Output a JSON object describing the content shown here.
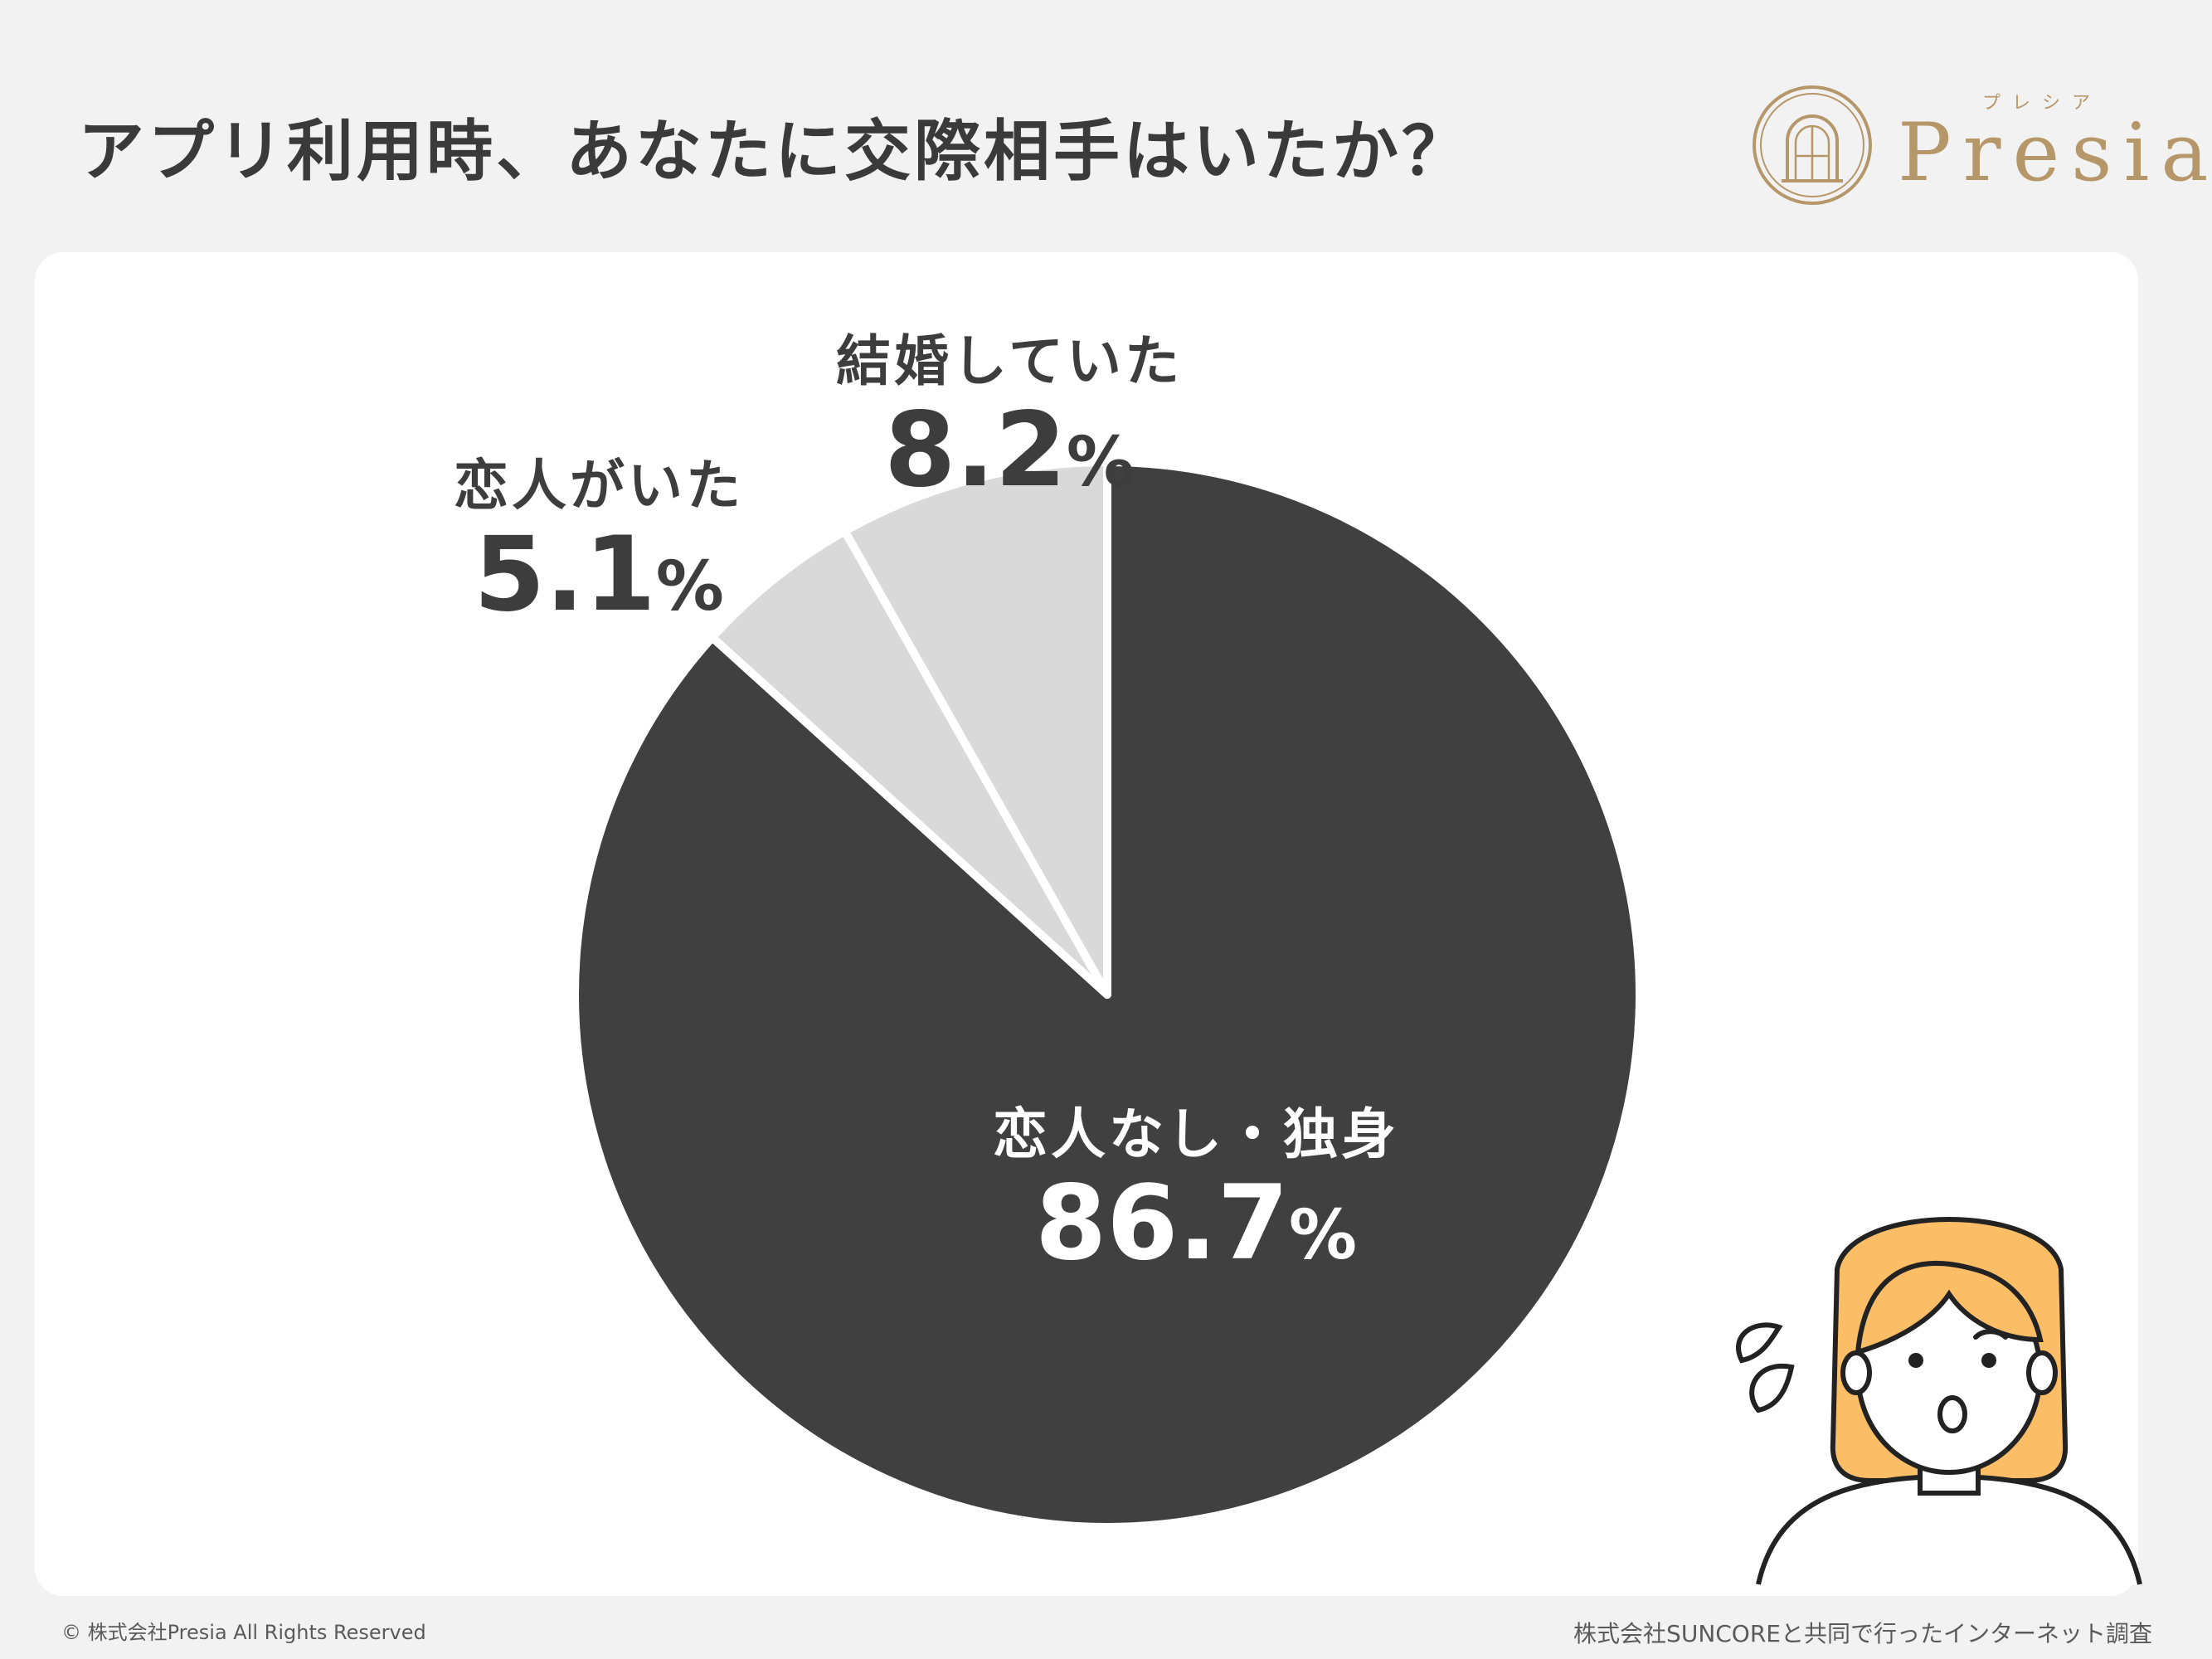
{
  "title": "アプリ利用時、あなたに交際相手はいたか？",
  "logo": {
    "word": "Presia",
    "kana": "プレシア"
  },
  "chart_data": {
    "type": "pie",
    "start": "12 o'clock",
    "direction": "clockwise",
    "slices": [
      {
        "label": "恋人なし・独身",
        "value": 86.7,
        "color": "#404040"
      },
      {
        "label": "恋人がいた",
        "value": 5.1,
        "color": "#d9d9d9"
      },
      {
        "label": "結婚していた",
        "value": 8.2,
        "color": "#d9d9d9"
      }
    ],
    "value_unit": "%"
  },
  "footer": {
    "copyright": "© 株式会社Presia All Rights Reserved",
    "source": "株式会社SUNCOREと共同で行ったインターネット調査"
  },
  "colors": {
    "background": "#f2f2f2",
    "card": "#ffffff",
    "accent_gold": "#b6976a",
    "text": "#3a3a3a"
  },
  "illustration": "worried-woman-icon"
}
